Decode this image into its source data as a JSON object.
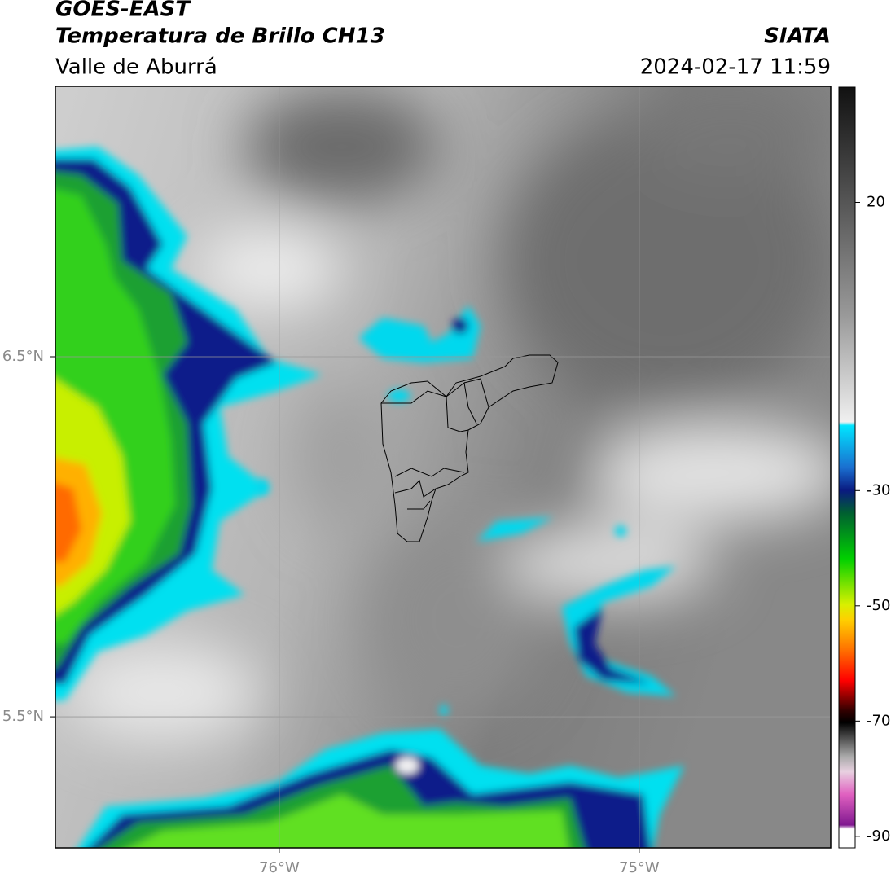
{
  "header": {
    "title": "GOES-EAST",
    "subtitle": "Temperatura de Brillo CH13",
    "region": "Valle de Aburrá",
    "source": "SIATA",
    "datetime": "2024-02-17 11:59"
  },
  "map": {
    "xlim": [
      -76.622,
      -74.468
    ],
    "ylim": [
      5.136,
      7.251
    ],
    "xticks": [
      {
        "value": -76,
        "label": "76°W"
      },
      {
        "value": -75,
        "label": "75°W"
      }
    ],
    "yticks": [
      {
        "value": 5.5,
        "label": "5.5°N"
      },
      {
        "value": 6.5,
        "label": "6.5°N"
      }
    ],
    "grid": true
  },
  "colorbar": {
    "lim": [
      -92,
      40
    ],
    "ticks": [
      20,
      -30,
      -50,
      -70,
      -90
    ]
  }
}
